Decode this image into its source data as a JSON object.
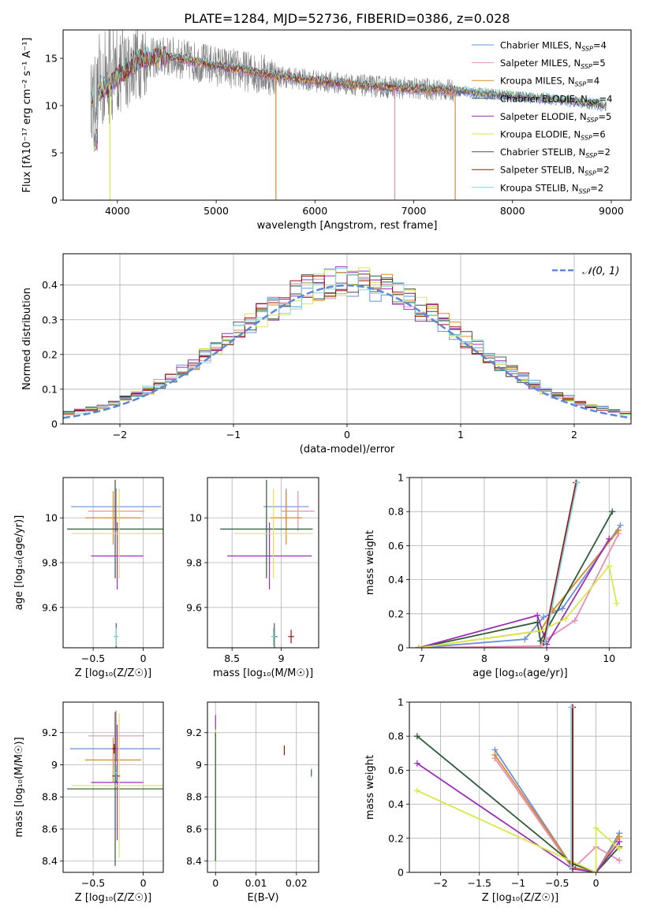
{
  "figure": {
    "title": "PLATE=1284, MJD=52736, FIBERID=0386, z=0.028",
    "colors": [
      "#6a8fde",
      "#e58fb8",
      "#d98a28",
      "#2e5a38",
      "#9b2fb5",
      "#d9e84a",
      "#555555",
      "#a01010",
      "#7ed8dc"
    ]
  },
  "chart_data": [
    {
      "id": "spectrum",
      "type": "line",
      "xlabel": "wavelength [Angstrom, rest frame]",
      "ylabel": "Flux [fλ10⁻¹⁷ erg cm⁻² s⁻¹ A⁻¹]",
      "xlim": [
        3450,
        9200
      ],
      "ylim": [
        0,
        18
      ],
      "xticks": [
        4000,
        5000,
        6000,
        7000,
        8000,
        9000
      ],
      "yticks": [
        0,
        5,
        10,
        15
      ],
      "grid": false,
      "legend": "top-right",
      "series": [
        {
          "name": "Chabrier MILES, N_SSP=4"
        },
        {
          "name": "Salpeter MILES, N_SSP=5"
        },
        {
          "name": "Kroupa MILES, N_SSP=4"
        },
        {
          "name": "Chabrier ELODIE, N_SSP=4"
        },
        {
          "name": "Salpeter ELODIE, N_SSP=5"
        },
        {
          "name": "Kroupa ELODIE, N_SSP=6"
        },
        {
          "name": "Chabrier STELIB, N_SSP=2"
        },
        {
          "name": "Salpeter STELIB, N_SSP=2"
        },
        {
          "name": "Kroupa STELIB, N_SSP=2"
        }
      ],
      "data_extent": [
        3730,
        8950
      ],
      "continuum": {
        "x": [
          3730,
          3800,
          3900,
          4000,
          4200,
          4500,
          5000,
          5500,
          6000,
          6500,
          7000,
          7400,
          7600,
          8000,
          8500,
          8950
        ],
        "y": [
          10.5,
          11.5,
          12.0,
          13.0,
          14.8,
          15.2,
          14.2,
          13.3,
          12.6,
          12.1,
          11.8,
          11.6,
          11.4,
          11.0,
          10.6,
          10.0
        ]
      }
    },
    {
      "id": "residuals",
      "type": "bar",
      "xlabel": "(data-model)/error",
      "ylabel": "Normed distribution",
      "xlim": [
        -2.5,
        2.5
      ],
      "ylim": [
        0,
        0.49
      ],
      "xticks": [
        -2,
        -1,
        0,
        1,
        2
      ],
      "yticks": [
        0.0,
        0.1,
        0.2,
        0.3,
        0.4
      ],
      "grid": true,
      "legend": "top-right",
      "reference": {
        "name": "𝒩(0, 1)",
        "mean": 0,
        "sigma": 1
      },
      "bins": {
        "start": -2.5,
        "width": 0.1,
        "count": 50
      }
    },
    {
      "id": "age-vs-Z",
      "type": "scatter",
      "xlabel": "Z [log₁₀(Z/Z☉)]",
      "ylabel": "age  [log₁₀(age/yr)]",
      "xlim": [
        -0.8,
        0.2
      ],
      "ylim": [
        9.42,
        10.18
      ],
      "xticks": [
        -0.5,
        0.0
      ],
      "yticks": [
        9.6,
        9.8,
        10.0
      ],
      "grid": true,
      "points": [
        {
          "x": -0.27,
          "y": 10.05,
          "xerr": 0.45,
          "yerr": 0.08,
          "c": 0
        },
        {
          "x": -0.27,
          "y": 10.03,
          "xerr": 0.28,
          "yerr": 0.09,
          "c": 1
        },
        {
          "x": -0.3,
          "y": 10.0,
          "xerr": 0.28,
          "yerr": 0.12,
          "c": 2
        },
        {
          "x": -0.28,
          "y": 9.95,
          "xerr": 0.48,
          "yerr": 0.22,
          "c": 3
        },
        {
          "x": -0.26,
          "y": 9.83,
          "xerr": 0.26,
          "yerr": 0.15,
          "c": 4
        },
        {
          "x": -0.24,
          "y": 9.93,
          "xerr": 0.47,
          "yerr": 0.2,
          "c": 5
        },
        {
          "x": -0.27,
          "y": 9.47,
          "xerr": 0.02,
          "yerr": 0.06,
          "c": 6
        },
        {
          "x": -0.27,
          "y": 9.47,
          "xerr": 0.02,
          "yerr": 0.04,
          "c": 8
        }
      ]
    },
    {
      "id": "age-vs-mass",
      "type": "scatter",
      "xlabel": "mass [log₁₀(M/M☉)]",
      "ylabel": "",
      "xlim": [
        8.25,
        9.38
      ],
      "ylim": [
        9.42,
        10.18
      ],
      "xticks": [
        8.5,
        9.0
      ],
      "yticks": [
        9.6,
        9.8,
        10.0
      ],
      "grid": true,
      "points": [
        {
          "x": 9.05,
          "y": 10.05,
          "xerr": 0.23,
          "yerr": 0.08,
          "c": 0
        },
        {
          "x": 9.17,
          "y": 10.03,
          "xerr": 0.17,
          "yerr": 0.09,
          "c": 1
        },
        {
          "x": 9.05,
          "y": 10.0,
          "xerr": 0.16,
          "yerr": 0.12,
          "c": 2
        },
        {
          "x": 8.85,
          "y": 9.95,
          "xerr": 0.47,
          "yerr": 0.22,
          "c": 3
        },
        {
          "x": 8.88,
          "y": 9.83,
          "xerr": 0.43,
          "yerr": 0.15,
          "c": 4
        },
        {
          "x": 8.92,
          "y": 9.93,
          "xerr": 0.4,
          "yerr": 0.2,
          "c": 5
        },
        {
          "x": 8.93,
          "y": 9.47,
          "xerr": 0.03,
          "yerr": 0.06,
          "c": 6
        },
        {
          "x": 9.1,
          "y": 9.47,
          "xerr": 0.03,
          "yerr": 0.03,
          "c": 7
        },
        {
          "x": 8.92,
          "y": 9.47,
          "xerr": 0.02,
          "yerr": 0.04,
          "c": 8
        }
      ]
    },
    {
      "id": "mass-weight-vs-age",
      "type": "line",
      "xlabel": "age  [log₁₀(age/yr)]",
      "ylabel": "mass weight",
      "xlim": [
        6.8,
        10.35
      ],
      "ylim": [
        0,
        1.0
      ],
      "xticks": [
        7,
        8,
        9,
        10
      ],
      "yticks": [
        0.0,
        0.2,
        0.4,
        0.6,
        0.8,
        1.0
      ],
      "grid": true,
      "series": [
        {
          "c": 0,
          "x": [
            6.95,
            8.65,
            8.95,
            9.25,
            10.18
          ],
          "y": [
            0.0,
            0.05,
            0.18,
            0.23,
            0.72
          ]
        },
        {
          "c": 1,
          "x": [
            6.95,
            8.9,
            9.0,
            9.45,
            10.15
          ],
          "y": [
            0.0,
            0.01,
            0.05,
            0.16,
            0.67
          ]
        },
        {
          "c": 2,
          "x": [
            6.95,
            8.9,
            9.1,
            10.15
          ],
          "y": [
            0.0,
            0.1,
            0.22,
            0.69
          ]
        },
        {
          "c": 3,
          "x": [
            6.95,
            8.85,
            8.9,
            10.05
          ],
          "y": [
            0.0,
            0.15,
            0.04,
            0.8
          ]
        },
        {
          "c": 4,
          "x": [
            6.95,
            8.85,
            9.0,
            10.0
          ],
          "y": [
            0.0,
            0.19,
            0.02,
            0.64
          ]
        },
        {
          "c": 5,
          "x": [
            6.95,
            8.9,
            9.3,
            10.0,
            10.12
          ],
          "y": [
            0.0,
            0.1,
            0.17,
            0.48,
            0.26
          ]
        },
        {
          "c": 6,
          "x": [
            8.95,
            9.47
          ],
          "y": [
            0.03,
            0.97
          ]
        },
        {
          "c": 7,
          "x": [
            8.95,
            9.47
          ],
          "y": [
            0.03,
            0.97
          ]
        },
        {
          "c": 8,
          "x": [
            8.97,
            9.49
          ],
          "y": [
            0.03,
            0.97
          ]
        }
      ]
    },
    {
      "id": "mass-vs-Z",
      "type": "scatter",
      "xlabel": "Z [log₁₀(Z/Z☉)]",
      "ylabel": "mass [log₁₀(M/M☉)]",
      "xlim": [
        -0.8,
        0.2
      ],
      "ylim": [
        8.33,
        9.39
      ],
      "xticks": [
        -0.5,
        0.0
      ],
      "yticks": [
        8.4,
        8.6,
        8.8,
        9.0,
        9.2
      ],
      "grid": true,
      "points": [
        {
          "x": -0.28,
          "y": 9.1,
          "xerr": 0.45,
          "yerr": 0.12,
          "c": 0
        },
        {
          "x": -0.27,
          "y": 9.18,
          "xerr": 0.28,
          "yerr": 0.16,
          "c": 1
        },
        {
          "x": -0.3,
          "y": 9.03,
          "xerr": 0.28,
          "yerr": 0.14,
          "c": 2
        },
        {
          "x": -0.28,
          "y": 8.85,
          "xerr": 0.48,
          "yerr": 0.48,
          "c": 3
        },
        {
          "x": -0.26,
          "y": 8.89,
          "xerr": 0.26,
          "yerr": 0.36,
          "c": 4
        },
        {
          "x": -0.24,
          "y": 8.87,
          "xerr": 0.47,
          "yerr": 0.45,
          "c": 5
        },
        {
          "x": -0.27,
          "y": 8.93,
          "xerr": 0.04,
          "yerr": 0.04,
          "c": 6
        },
        {
          "x": -0.29,
          "y": 9.1,
          "xerr": 0.02,
          "yerr": 0.03,
          "c": 7
        },
        {
          "x": -0.27,
          "y": 8.95,
          "xerr": 0.02,
          "yerr": 0.05,
          "c": 8
        }
      ]
    },
    {
      "id": "mass-vs-ebv",
      "type": "scatter",
      "xlabel": "E(B-V)",
      "ylabel": "",
      "xlim": [
        -0.002,
        0.0255
      ],
      "ylim": [
        8.33,
        9.39
      ],
      "xticks": [
        0.0,
        0.01,
        0.02
      ],
      "yticks": [
        8.4,
        8.6,
        8.8,
        9.0,
        9.2
      ],
      "grid": true,
      "points": [
        {
          "x": 0.0,
          "y": 9.25,
          "xerr": 0.0,
          "yerr": 0.06,
          "c": 4
        },
        {
          "x": 0.0,
          "y": 8.8,
          "xerr": 0.0,
          "yerr": 0.42,
          "c": 5
        },
        {
          "x": 0.0,
          "y": 8.8,
          "xerr": 0.0,
          "yerr": 0.4,
          "c": 3
        },
        {
          "x": 0.017,
          "y": 9.09,
          "xerr": 0.0,
          "yerr": 0.03,
          "c": 7
        },
        {
          "x": 0.0237,
          "y": 8.95,
          "xerr": 0.0,
          "yerr": 0.03,
          "c": 8
        },
        {
          "x": 0.0237,
          "y": 8.95,
          "xerr": 0.0,
          "yerr": 0.02,
          "c": 6
        }
      ]
    },
    {
      "id": "mass-weight-vs-Z",
      "type": "line",
      "xlabel": "Z [log₁₀(Z/Z☉)]",
      "ylabel": "mass weight",
      "xlim": [
        -2.4,
        0.45
      ],
      "ylim": [
        0,
        1.0
      ],
      "xticks": [
        -2.0,
        -1.5,
        -1.0,
        -0.5,
        0.0
      ],
      "yticks": [
        0.0,
        0.2,
        0.4,
        0.6,
        0.8,
        1.0
      ],
      "grid": true,
      "series": [
        {
          "c": 0,
          "x": [
            -1.3,
            -0.3,
            0.0,
            0.3
          ],
          "y": [
            0.72,
            0.03,
            0.0,
            0.23
          ]
        },
        {
          "c": 1,
          "x": [
            -1.3,
            -0.3,
            0.0,
            0.3
          ],
          "y": [
            0.67,
            0.02,
            0.15,
            0.07
          ]
        },
        {
          "c": 2,
          "x": [
            -1.3,
            -0.3,
            0.0,
            0.3
          ],
          "y": [
            0.69,
            0.03,
            0.0,
            0.21
          ]
        },
        {
          "c": 3,
          "x": [
            -2.3,
            -0.3,
            0.0,
            0.3
          ],
          "y": [
            0.8,
            0.05,
            0.0,
            0.15
          ]
        },
        {
          "c": 4,
          "x": [
            -2.3,
            -0.3,
            0.0,
            0.3
          ],
          "y": [
            0.64,
            0.02,
            0.0,
            0.18
          ]
        },
        {
          "c": 5,
          "x": [
            -2.3,
            0.0,
            0.0,
            0.3
          ],
          "y": [
            0.48,
            0.0,
            0.26,
            0.14
          ]
        },
        {
          "c": 6,
          "x": [
            -0.3,
            -0.3
          ],
          "y": [
            0.03,
            0.97
          ]
        },
        {
          "c": 7,
          "x": [
            -0.3,
            -0.3
          ],
          "y": [
            0.03,
            0.97
          ]
        },
        {
          "c": 8,
          "x": [
            -0.32,
            -0.32
          ],
          "y": [
            0.03,
            0.97
          ]
        }
      ]
    }
  ]
}
